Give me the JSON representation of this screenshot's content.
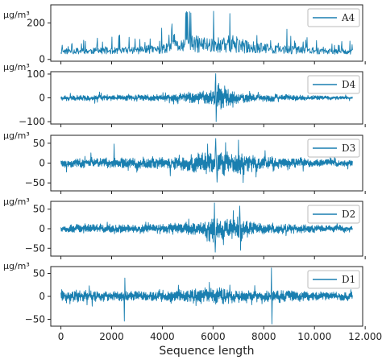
{
  "chart_data": [
    {
      "type": "line",
      "series": [
        {
          "name": "A4"
        }
      ],
      "ylabel": "μg/m³",
      "ylim": [
        -10,
        300
      ],
      "yticks": [
        0,
        200
      ],
      "ytick_labels": [
        "0",
        "200"
      ],
      "xlim": [
        -400,
        11900
      ],
      "color": "#1a7fb0",
      "grid": false,
      "legend": "top-right",
      "shape": "baseline around 40, bursts up to about 270 between 4000 and 8000",
      "profile": [
        [
          0,
          40
        ],
        [
          2000,
          45
        ],
        [
          4000,
          60
        ],
        [
          5000,
          120
        ],
        [
          6000,
          110
        ],
        [
          7000,
          100
        ],
        [
          8000,
          70
        ],
        [
          10000,
          45
        ],
        [
          11500,
          35
        ]
      ]
    },
    {
      "type": "line",
      "series": [
        {
          "name": "D4"
        }
      ],
      "ylabel": "μg/m³",
      "ylim": [
        -110,
        110
      ],
      "yticks": [
        -100,
        0,
        100
      ],
      "ytick_labels": [
        "−100",
        "0",
        "100"
      ],
      "xlim": [
        -400,
        11900
      ],
      "color": "#1a7fb0",
      "grid": false,
      "legend": "top-right",
      "shape": "oscillation about 0, amplitude about 20, spikes to about ±100 near 6100",
      "profile": [
        [
          0,
          15
        ],
        [
          2000,
          18
        ],
        [
          4000,
          20
        ],
        [
          5000,
          30
        ],
        [
          6000,
          45
        ],
        [
          6100,
          100
        ],
        [
          7000,
          30
        ],
        [
          8000,
          22
        ],
        [
          10000,
          15
        ],
        [
          11500,
          10
        ]
      ]
    },
    {
      "type": "line",
      "series": [
        {
          "name": "D3"
        }
      ],
      "ylabel": "μg/m³",
      "ylim": [
        -70,
        70
      ],
      "yticks": [
        -50,
        0,
        50
      ],
      "ytick_labels": [
        "−50",
        "0",
        "50"
      ],
      "xlim": [
        -400,
        11900
      ],
      "color": "#1a7fb0",
      "grid": false,
      "legend": "top-right",
      "shape": "oscillation about 0, amplitude about 15, up to about 60 between 5500 and 7500",
      "profile": [
        [
          0,
          15
        ],
        [
          2000,
          18
        ],
        [
          4000,
          22
        ],
        [
          5000,
          28
        ],
        [
          6000,
          45
        ],
        [
          7000,
          40
        ],
        [
          8000,
          25
        ],
        [
          10000,
          15
        ],
        [
          11500,
          12
        ]
      ]
    },
    {
      "type": "line",
      "series": [
        {
          "name": "D2"
        }
      ],
      "ylabel": "μg/m³",
      "ylim": [
        -70,
        70
      ],
      "yticks": [
        -50,
        0,
        50
      ],
      "ytick_labels": [
        "−50",
        "0",
        "50"
      ],
      "xlim": [
        -400,
        11900
      ],
      "color": "#1a7fb0",
      "grid": false,
      "legend": "top-right",
      "shape": "oscillation about 0, amplitude about 15, up to about 65 near 6000 and 7000",
      "profile": [
        [
          0,
          15
        ],
        [
          2000,
          16
        ],
        [
          4000,
          18
        ],
        [
          5500,
          25
        ],
        [
          6000,
          55
        ],
        [
          6500,
          30
        ],
        [
          7000,
          50
        ],
        [
          7500,
          25
        ],
        [
          8000,
          20
        ],
        [
          10000,
          14
        ],
        [
          11500,
          10
        ]
      ]
    },
    {
      "type": "line",
      "series": [
        {
          "name": "D1"
        }
      ],
      "ylabel": "μg/m³",
      "ylim": [
        -65,
        65
      ],
      "yticks": [
        -50,
        0,
        50
      ],
      "ytick_labels": [
        "−50",
        "0",
        "50"
      ],
      "xlim": [
        -400,
        11900
      ],
      "xticks": [
        0,
        2000,
        4000,
        6000,
        8000,
        10000,
        12000
      ],
      "xtick_labels": [
        "0",
        "2000",
        "4000",
        "6000",
        "8000",
        "10.000",
        "12.000"
      ],
      "xlabel": "Sequence length",
      "color": "#1a7fb0",
      "grid": false,
      "legend": "top-right",
      "shape": "oscillation about 0, amplitude about 15, isolated spikes near 2500 and 8300 (to about ±60)",
      "profile": [
        [
          0,
          20
        ],
        [
          2000,
          15
        ],
        [
          4000,
          18
        ],
        [
          6000,
          25
        ],
        [
          8000,
          20
        ],
        [
          10000,
          15
        ],
        [
          11500,
          12
        ]
      ]
    }
  ]
}
